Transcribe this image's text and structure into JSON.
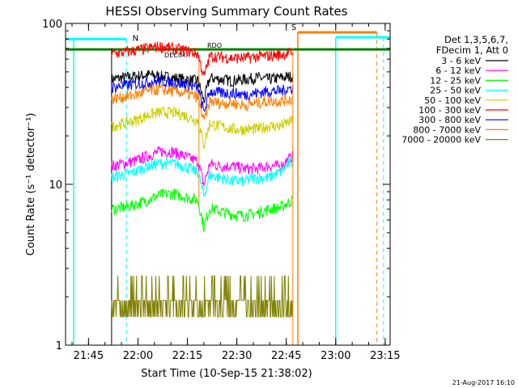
{
  "chart_data": {
    "type": "line",
    "title": "HESSI Observing Summary Count Rates",
    "ylabel": "Count Rate (s⁻¹ detector⁻¹)",
    "xlabel": "Start Time (10-Sep-15 21:38:02)",
    "yscale": "log",
    "ylim": [
      1,
      100
    ],
    "xlim": [
      "21:38:02",
      "23:16:30"
    ],
    "x_ticks": [
      "21:45",
      "22:00",
      "22:15",
      "22:30",
      "22:45",
      "23:00",
      "23:15"
    ],
    "y_ticks": [
      "1",
      "10",
      "100"
    ],
    "legend_header": [
      "Det 1,3,5,6,7,",
      "FDecim 1, Att 0"
    ],
    "legend_position": "right",
    "timestamp": "21-Aug-2017 16:10",
    "flag_labels": {
      "night": "N",
      "saa": "S",
      "decimation": "DECIM",
      "rdo": "RDO"
    },
    "data_start": "21:52:00",
    "data_end": "22:47:00",
    "series": [
      {
        "name": "3 - 6 keV",
        "color": "#000000",
        "values": [
          45,
          46,
          47,
          48,
          47,
          46,
          45,
          44,
          46,
          45,
          44,
          45,
          46,
          45,
          46,
          47
        ]
      },
      {
        "name": "6 - 12 keV",
        "color": "#ff00ff",
        "values": [
          13,
          13.5,
          14,
          15,
          16,
          16,
          15,
          14,
          13.5,
          13,
          13,
          12.5,
          12.5,
          13,
          13,
          15
        ]
      },
      {
        "name": "12 - 25 keV",
        "color": "#00ff00",
        "values": [
          7,
          7.2,
          7.5,
          8,
          8.6,
          8.8,
          8.4,
          8,
          7.2,
          6.8,
          6.5,
          6.4,
          6.6,
          7,
          7.2,
          8
        ]
      },
      {
        "name": "25 - 50 keV",
        "color": "#00ffff",
        "values": [
          11,
          11.5,
          12,
          13,
          13.5,
          13.5,
          13,
          12,
          11.5,
          11,
          10.5,
          10.5,
          11,
          11,
          12,
          14
        ]
      },
      {
        "name": "50 - 100 keV",
        "color": "#cccc00",
        "values": [
          23,
          24,
          25,
          27,
          28,
          28,
          27,
          25,
          24,
          23,
          22,
          22,
          22,
          23,
          23,
          25
        ]
      },
      {
        "name": "100 - 300 keV",
        "color": "#ff0000",
        "values": [
          65,
          66,
          68,
          70,
          72,
          70,
          68,
          65,
          63,
          62,
          61,
          61,
          62,
          63,
          64,
          66
        ]
      },
      {
        "name": "300 - 800 keV",
        "color": "#0000ff",
        "values": [
          40,
          41,
          42,
          43,
          44,
          43,
          42,
          40,
          38,
          37,
          37,
          36,
          37,
          38,
          38,
          40
        ]
      },
      {
        "name": "800 - 7000 keV",
        "color": "#ff8000",
        "values": [
          34,
          35,
          36,
          38,
          39,
          38,
          37,
          35,
          33,
          32,
          32,
          31,
          32,
          33,
          33,
          34
        ]
      },
      {
        "name": "7000 - 20000 keV",
        "color": "#808000",
        "values": [
          1.9,
          1.95,
          2,
          2,
          2,
          1.95,
          2,
          1.9,
          2,
          1.95,
          2,
          1.9,
          2,
          2,
          1.95,
          2
        ]
      }
    ]
  }
}
